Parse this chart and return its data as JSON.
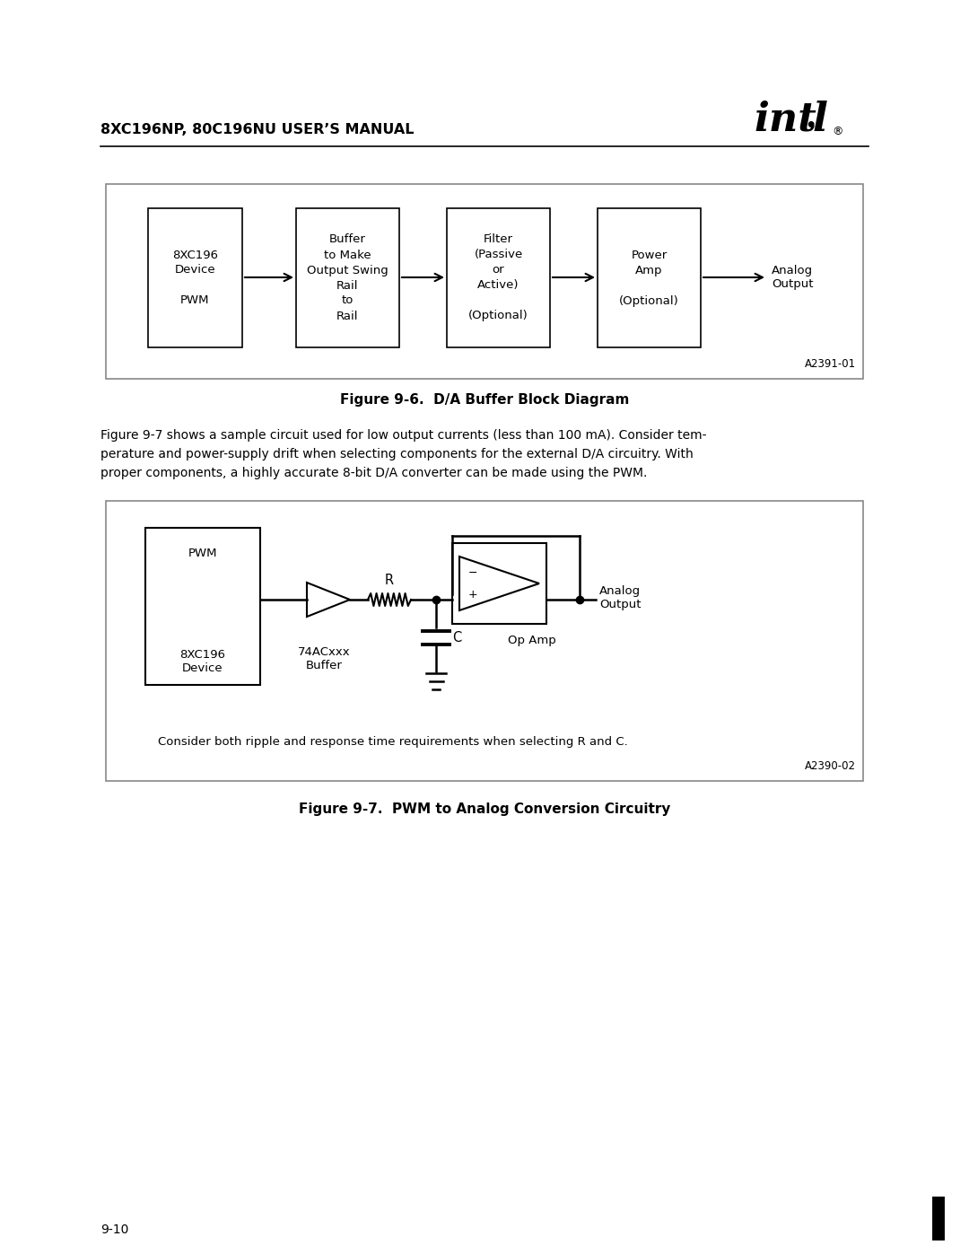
{
  "page_title": "8XC196NP, 80C196NU USER’S MANUAL",
  "fig1_caption": "Figure 9-6.  D/A Buffer Block Diagram",
  "fig1_ref": "A2391-01",
  "fig2_caption": "Figure 9-7.  PWM to Analog Conversion Circuitry",
  "fig2_ref": "A2390-02",
  "fig2_note": "Consider both ripple and response time requirements when selecting R and C.",
  "paragraph_line1": "Figure 9-7 shows a sample circuit used for low output currents (less than 100 mA). Consider tem-",
  "paragraph_line2": "perature and power-supply drift when selecting components for the external D/A circuitry. With",
  "paragraph_line3": "proper components, a highly accurate 8-bit D/A converter can be made using the PWM.",
  "page_number": "9-10",
  "bg_color": "#ffffff",
  "text_color": "#000000"
}
